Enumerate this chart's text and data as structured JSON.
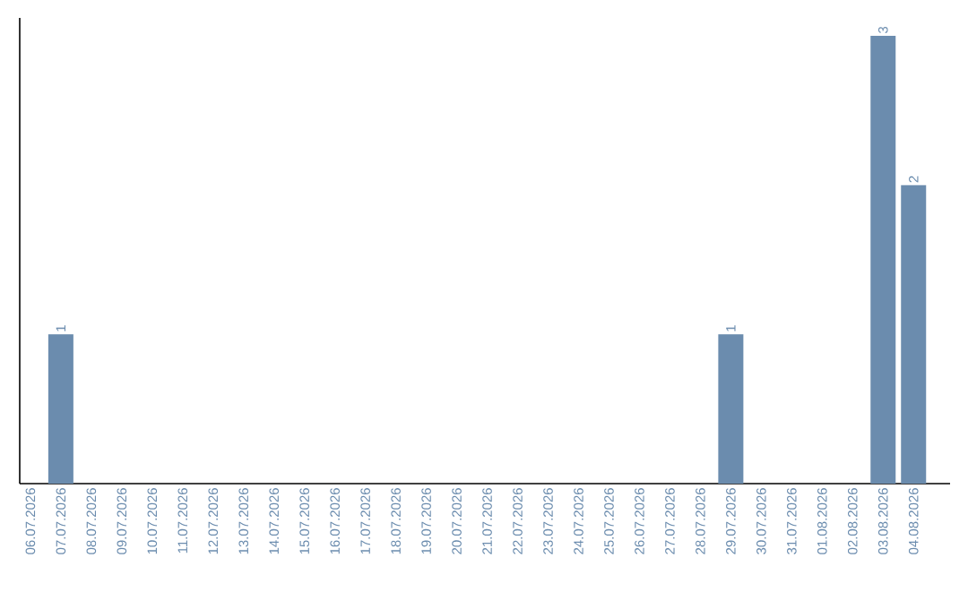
{
  "chart_data": {
    "type": "bar",
    "tick_labels": "x",
    "categories": [
      "06.07.2026",
      "07.07.2026",
      "08.07.2026",
      "09.07.2026",
      "10.07.2026",
      "11.07.2026",
      "12.07.2026",
      "13.07.2026",
      "14.07.2026",
      "15.07.2026",
      "16.07.2026",
      "17.07.2026",
      "18.07.2026",
      "19.07.2026",
      "20.07.2026",
      "21.07.2026",
      "22.07.2026",
      "23.07.2026",
      "24.07.2026",
      "25.07.2026",
      "26.07.2026",
      "27.07.2026",
      "28.07.2026",
      "29.07.2026",
      "30.07.2026",
      "31.07.2026",
      "01.08.2026",
      "02.08.2026",
      "03.08.2026",
      "04.08.2026"
    ],
    "values": [
      0,
      1,
      0,
      0,
      0,
      0,
      0,
      0,
      0,
      0,
      0,
      0,
      0,
      0,
      0,
      0,
      0,
      0,
      0,
      0,
      0,
      0,
      0,
      1,
      0,
      0,
      0,
      0,
      3,
      2
    ],
    "value_labels": [
      null,
      "1",
      null,
      null,
      null,
      null,
      null,
      null,
      null,
      null,
      null,
      null,
      null,
      null,
      null,
      null,
      null,
      null,
      null,
      null,
      null,
      null,
      null,
      "1",
      null,
      null,
      null,
      null,
      "3",
      "2"
    ],
    "color": "#6b8cae"
  }
}
